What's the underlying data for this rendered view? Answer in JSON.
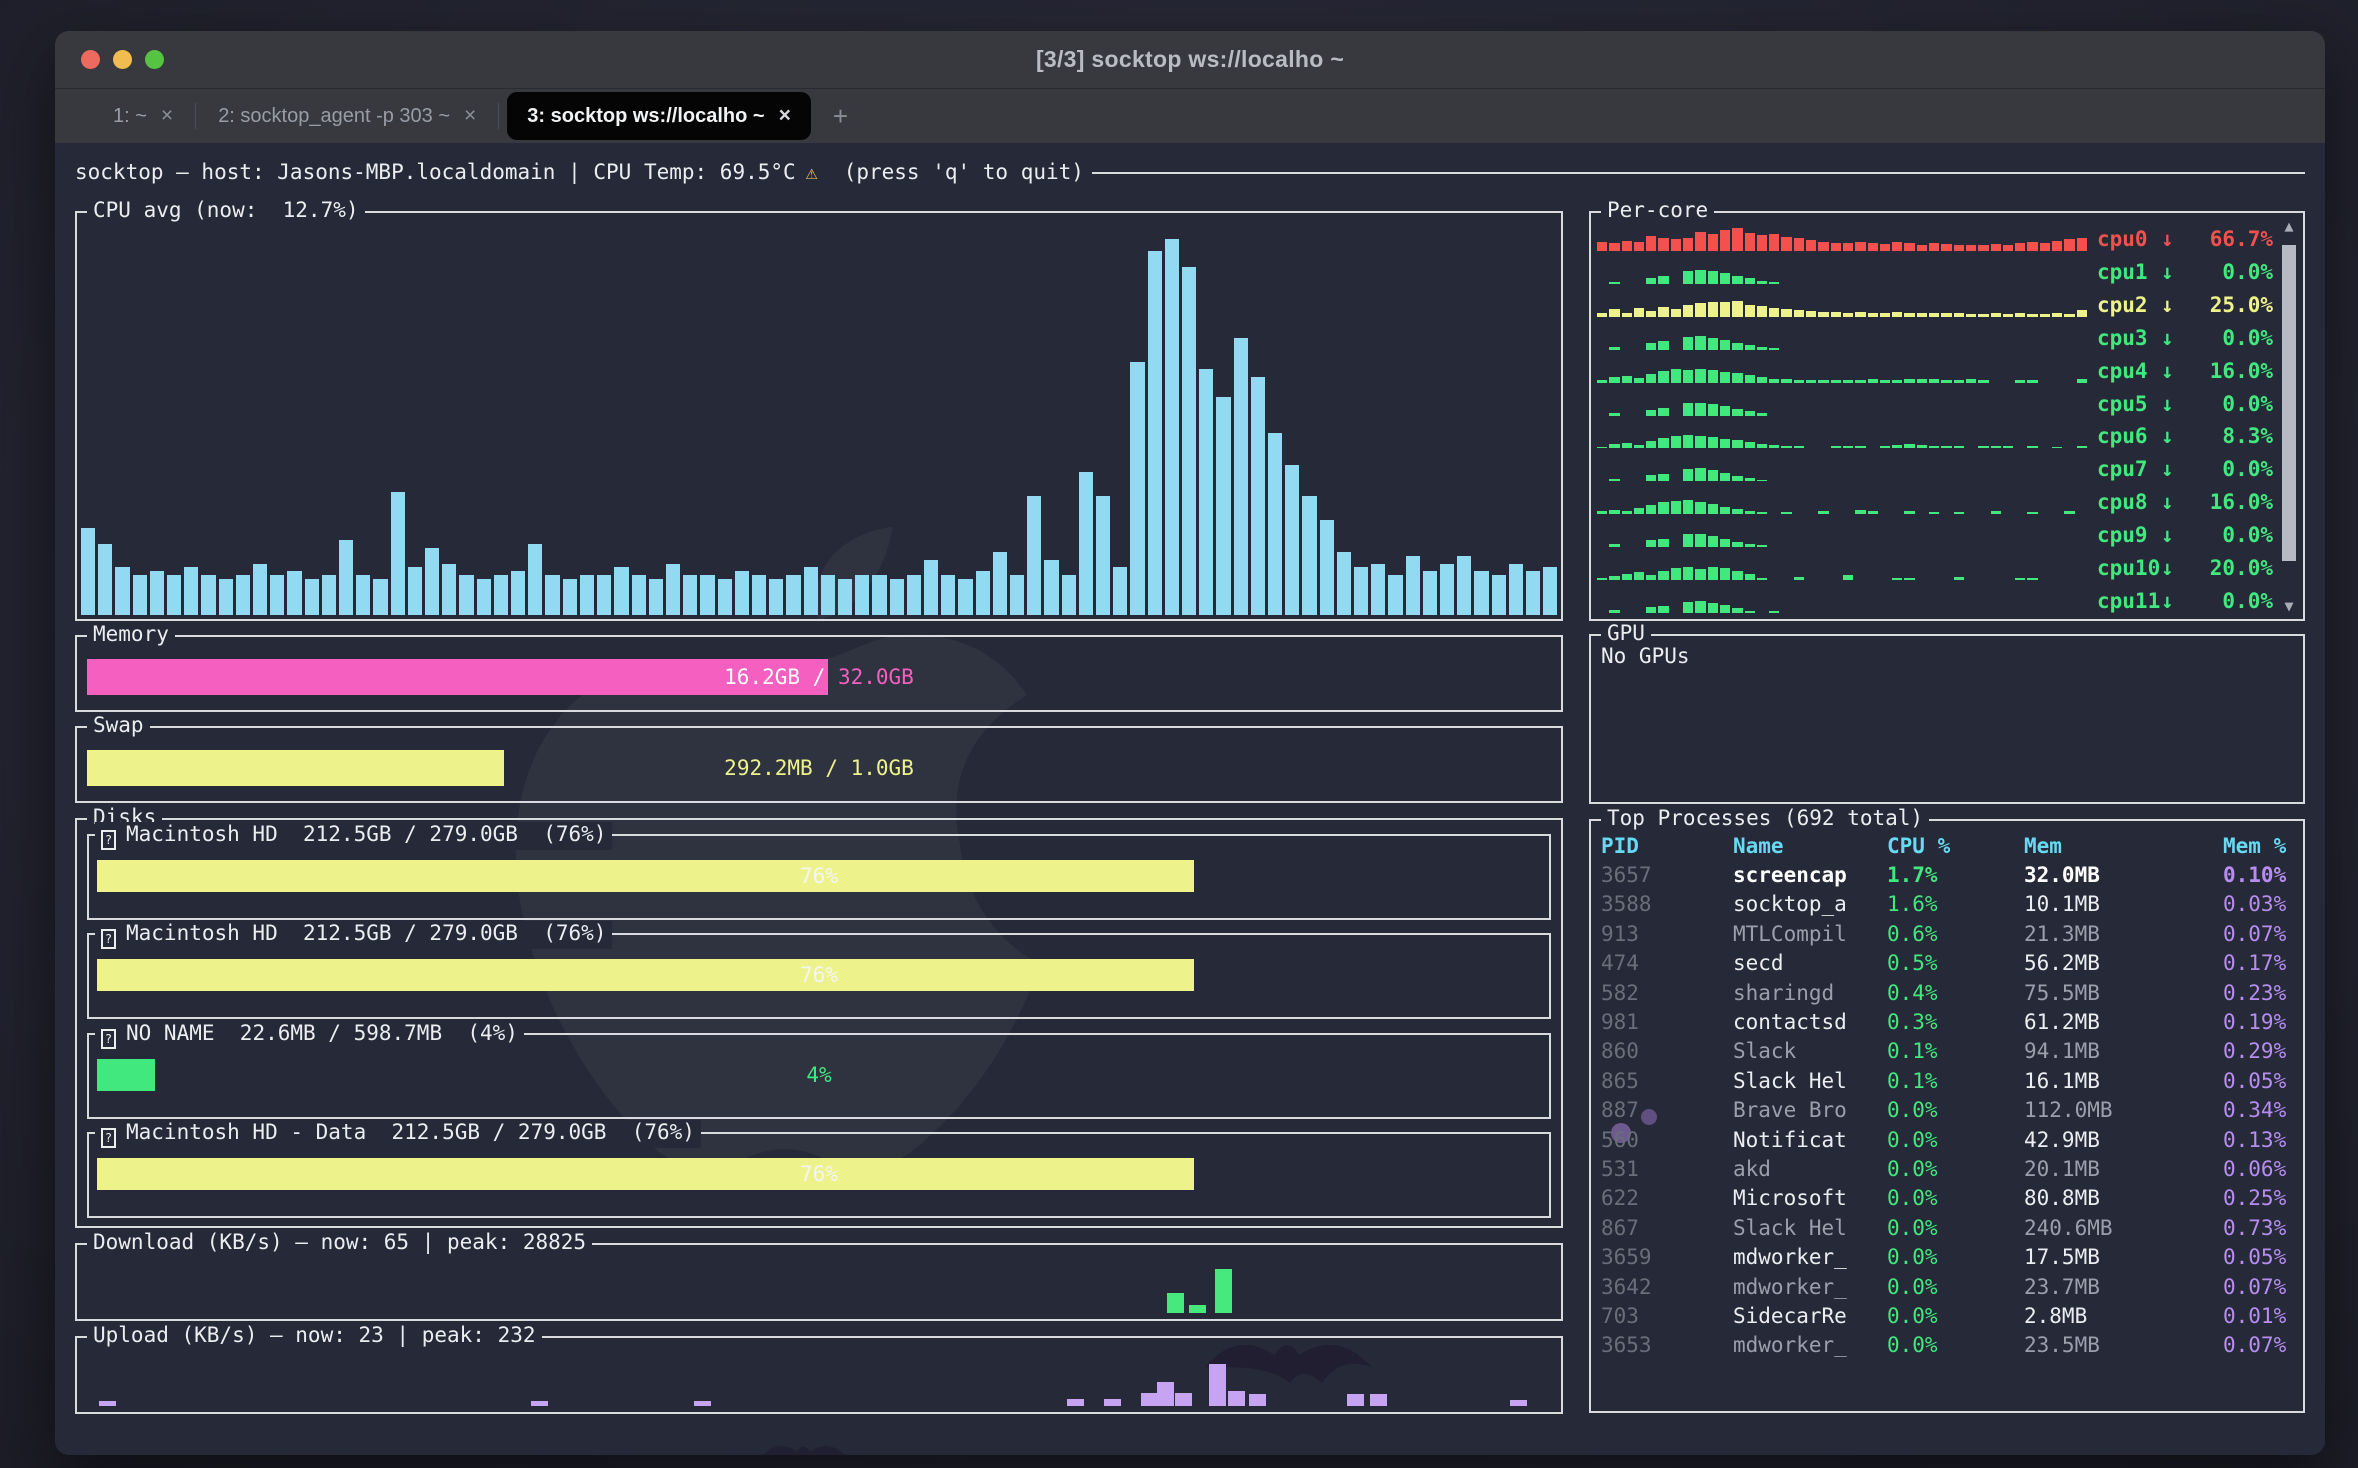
{
  "window": {
    "title": "[3/3] socktop ws://localho ~"
  },
  "tabs": [
    {
      "label": "1: ~",
      "close": "×",
      "active": false
    },
    {
      "label": "2: socktop_agent -p 303 ~",
      "close": "×",
      "active": false
    },
    {
      "label": "3: socktop ws://localho ~",
      "close": "×",
      "active": true
    }
  ],
  "tabbar": {
    "new_tab": "+"
  },
  "header": {
    "text": "socktop — host: Jasons-MBP.localdomain | CPU Temp: 69.5°C",
    "warning": "⚠",
    "suffix": "(press 'q' to quit)"
  },
  "colors": {
    "cpu_bars": "#92d9f2",
    "memory": "#f45fc0",
    "yellow": "#eef28a",
    "green": "#41e87d",
    "red": "#f2514d",
    "purple_text": "#b88df2",
    "upload_bars": "#c7a4f2",
    "header_cyan": "#67d9f2"
  },
  "chart_data": {
    "type": "bar",
    "title": "CPU avg (now:  12.7%)",
    "ylim": [
      0,
      100
    ],
    "values": [
      22,
      18,
      12,
      10,
      11,
      10,
      12,
      10,
      9,
      10,
      13,
      10,
      11,
      9,
      10,
      19,
      10,
      9,
      31,
      12,
      17,
      13,
      10,
      9,
      10,
      11,
      18,
      10,
      9,
      10,
      10,
      12,
      10,
      9,
      13,
      10,
      10,
      9,
      11,
      10,
      9,
      10,
      12,
      10,
      9,
      10,
      10,
      9,
      10,
      14,
      10,
      9,
      11,
      16,
      10,
      30,
      14,
      10,
      36,
      30,
      12,
      64,
      92,
      95,
      88,
      62,
      55,
      70,
      60,
      46,
      38,
      30,
      24,
      16,
      12,
      13,
      10,
      15,
      11,
      13,
      15,
      11,
      10,
      13,
      11,
      12
    ]
  },
  "cpu_panel": {
    "title": "CPU avg (now:  12.7%)",
    "bar_color": "#92d9f2"
  },
  "percore_panel": {
    "title": "Per-core",
    "scroll_up": "▲",
    "scroll_down": "▼",
    "cores": [
      {
        "name": "cpu0",
        "arrow": "↓",
        "value": "66.7%",
        "color": "#f2514d",
        "spark": [
          30,
          28,
          34,
          30,
          52,
          44,
          40,
          46,
          66,
          58,
          72,
          78,
          62,
          56,
          60,
          48,
          44,
          38,
          32,
          28,
          26,
          30,
          26,
          24,
          30,
          26,
          22,
          28,
          24,
          22,
          20,
          22,
          24,
          20,
          26,
          30,
          28,
          34,
          40,
          46
        ]
      },
      {
        "name": "cpu1",
        "arrow": "↓",
        "value": "0.0%",
        "color": "#41e87d",
        "spark": [
          0,
          8,
          0,
          0,
          22,
          28,
          0,
          46,
          48,
          44,
          38,
          26,
          20,
          10,
          8,
          0,
          0,
          0,
          0,
          0,
          0,
          0,
          0,
          0,
          0,
          0,
          0,
          0,
          0,
          0,
          0,
          0,
          0,
          0,
          0,
          0,
          0,
          0,
          0,
          0
        ]
      },
      {
        "name": "cpu2",
        "arrow": "↓",
        "value": "25.0%",
        "color": "#eef28a",
        "spark": [
          12,
          26,
          14,
          30,
          20,
          34,
          26,
          40,
          46,
          52,
          50,
          54,
          42,
          36,
          30,
          28,
          24,
          20,
          18,
          16,
          14,
          16,
          12,
          14,
          18,
          14,
          12,
          12,
          14,
          12,
          10,
          10,
          12,
          10,
          12,
          10,
          10,
          14,
          10,
          22
        ]
      },
      {
        "name": "cpu3",
        "arrow": "↓",
        "value": "0.0%",
        "color": "#41e87d",
        "spark": [
          0,
          10,
          0,
          0,
          24,
          30,
          0,
          44,
          46,
          42,
          34,
          24,
          16,
          8,
          6,
          0,
          0,
          0,
          0,
          0,
          0,
          0,
          0,
          0,
          0,
          0,
          0,
          0,
          0,
          0,
          0,
          0,
          0,
          0,
          0,
          0,
          0,
          0,
          0,
          0
        ]
      },
      {
        "name": "cpu4",
        "arrow": "↓",
        "value": "16.0%",
        "color": "#41e87d",
        "spark": [
          8,
          18,
          24,
          16,
          30,
          40,
          46,
          44,
          48,
          44,
          38,
          32,
          26,
          20,
          14,
          12,
          10,
          10,
          8,
          10,
          10,
          10,
          12,
          10,
          10,
          12,
          14,
          12,
          10,
          10,
          14,
          10,
          0,
          0,
          8,
          10,
          0,
          0,
          0,
          12
        ]
      },
      {
        "name": "cpu5",
        "arrow": "↓",
        "value": "0.0%",
        "color": "#41e87d",
        "spark": [
          0,
          8,
          0,
          0,
          20,
          26,
          0,
          42,
          44,
          40,
          32,
          22,
          14,
          8,
          0,
          0,
          0,
          0,
          0,
          0,
          0,
          0,
          0,
          0,
          0,
          0,
          0,
          0,
          0,
          0,
          0,
          0,
          0,
          0,
          0,
          0,
          0,
          0,
          0,
          0
        ]
      },
      {
        "name": "cpu6",
        "arrow": "↓",
        "value": "8.3%",
        "color": "#41e87d",
        "spark": [
          6,
          14,
          18,
          12,
          26,
          36,
          42,
          46,
          44,
          40,
          34,
          28,
          22,
          16,
          12,
          10,
          8,
          0,
          0,
          8,
          10,
          8,
          0,
          10,
          12,
          14,
          12,
          10,
          8,
          10,
          0,
          8,
          10,
          8,
          0,
          8,
          0,
          6,
          0,
          8
        ]
      },
      {
        "name": "cpu7",
        "arrow": "↓",
        "value": "0.0%",
        "color": "#41e87d",
        "spark": [
          0,
          8,
          0,
          0,
          22,
          26,
          0,
          44,
          46,
          40,
          30,
          20,
          12,
          6,
          0,
          0,
          0,
          0,
          0,
          0,
          0,
          0,
          0,
          0,
          0,
          0,
          0,
          0,
          0,
          0,
          0,
          0,
          0,
          0,
          0,
          0,
          0,
          0,
          0,
          0
        ]
      },
      {
        "name": "cpu8",
        "arrow": "↓",
        "value": "16.0%",
        "color": "#41e87d",
        "spark": [
          10,
          16,
          12,
          22,
          32,
          42,
          46,
          48,
          42,
          36,
          26,
          18,
          10,
          8,
          0,
          8,
          0,
          0,
          10,
          0,
          0,
          14,
          10,
          0,
          0,
          12,
          0,
          8,
          0,
          8,
          0,
          0,
          10,
          0,
          0,
          8,
          0,
          0,
          10,
          0
        ]
      },
      {
        "name": "cpu9",
        "arrow": "↓",
        "value": "0.0%",
        "color": "#41e87d",
        "spark": [
          0,
          10,
          0,
          0,
          24,
          28,
          0,
          46,
          44,
          38,
          28,
          18,
          10,
          6,
          0,
          0,
          0,
          0,
          0,
          0,
          0,
          0,
          0,
          0,
          0,
          0,
          0,
          0,
          0,
          0,
          0,
          0,
          0,
          0,
          0,
          0,
          0,
          0,
          0,
          0
        ]
      },
      {
        "name": "cpu10",
        "arrow": "↓",
        "value": "20.0%",
        "color": "#41e87d",
        "spark": [
          8,
          14,
          22,
          28,
          18,
          32,
          40,
          44,
          38,
          46,
          42,
          32,
          22,
          8,
          0,
          0,
          10,
          0,
          0,
          0,
          18,
          0,
          0,
          0,
          8,
          8,
          0,
          0,
          0,
          10,
          0,
          0,
          0,
          0,
          6,
          8,
          0,
          0,
          0,
          0
        ]
      },
      {
        "name": "cpu11",
        "arrow": "↓",
        "value": "0.0%",
        "color": "#41e87d",
        "spark": [
          0,
          10,
          0,
          0,
          20,
          24,
          0,
          38,
          42,
          36,
          26,
          16,
          8,
          0,
          6,
          0,
          0,
          0,
          0,
          0,
          0,
          0,
          0,
          0,
          0,
          0,
          0,
          0,
          0,
          0,
          0,
          0,
          0,
          0,
          0,
          0,
          0,
          0,
          0,
          0
        ]
      }
    ]
  },
  "memory_panel": {
    "title": "Memory",
    "used_label": "16.2GB /",
    "total_label": " 32.0GB",
    "percent": 50.6,
    "fill_color": "#f45fc0",
    "used_text_color": "#ffffff",
    "total_text_color": "#f45fc0"
  },
  "swap_panel": {
    "title": "Swap",
    "label": "292.2MB / 1.0GB",
    "percent": 28.5,
    "fill_color": "#eef28a",
    "text_color": "#eef28a"
  },
  "gpu_panel": {
    "title": "GPU",
    "text": "No GPUs"
  },
  "disks_panel": {
    "title": "Disks",
    "disks": [
      {
        "name": "Macintosh HD",
        "usage": "212.5GB / 279.0GB",
        "pct": "(76%)",
        "fill_percent": 76,
        "fill_color": "#eef28a",
        "label": "76%",
        "label_color": "#f4f5f7"
      },
      {
        "name": "Macintosh HD",
        "usage": "212.5GB / 279.0GB",
        "pct": "(76%)",
        "fill_percent": 76,
        "fill_color": "#eef28a",
        "label": "76%",
        "label_color": "#f4f5f7"
      },
      {
        "name": "NO NAME",
        "usage": "22.6MB / 598.7MB",
        "pct": "(4%)",
        "fill_percent": 4,
        "fill_color": "#41e87d",
        "label": "4%",
        "label_color": "#41e87d"
      },
      {
        "name": "Macintosh HD - Data",
        "usage": "212.5GB / 279.0GB",
        "pct": "(76%)",
        "fill_percent": 76,
        "fill_color": "#eef28a",
        "label": "76%",
        "label_color": "#f4f5f7"
      }
    ]
  },
  "download_panel": {
    "title": "Download (KB/s) — now: 65 | peak: 28825",
    "bar_color": "#45e97e",
    "bars": [
      {
        "x": 73.6,
        "h": 30
      },
      {
        "x": 75.1,
        "h": 12
      },
      {
        "x": 76.8,
        "h": 66
      }
    ]
  },
  "upload_panel": {
    "title": "Upload (KB/s) — now: 23 | peak: 232",
    "bar_color": "#c7a4f2",
    "bars": [
      {
        "x": 1.2,
        "h": 8
      },
      {
        "x": 30.5,
        "h": 8
      },
      {
        "x": 41.5,
        "h": 8
      },
      {
        "x": 66.8,
        "h": 10
      },
      {
        "x": 69.3,
        "h": 10
      },
      {
        "x": 71.8,
        "h": 20
      },
      {
        "x": 72.9,
        "h": 36
      },
      {
        "x": 74.1,
        "h": 20
      },
      {
        "x": 76.4,
        "h": 64
      },
      {
        "x": 77.7,
        "h": 22
      },
      {
        "x": 79.1,
        "h": 18
      },
      {
        "x": 85.8,
        "h": 18
      },
      {
        "x": 87.3,
        "h": 18
      },
      {
        "x": 96.8,
        "h": 9
      }
    ]
  },
  "processes_panel": {
    "title": "Top Processes (692 total)",
    "columns": [
      "PID",
      "Name",
      "CPU %",
      "Mem",
      "Mem %"
    ],
    "rows": [
      {
        "pid": "3657",
        "name": "screencap",
        "cpu": "1.7%",
        "mem": "32.0MB",
        "memp": "0.10%",
        "emph": true,
        "dim": false
      },
      {
        "pid": "3588",
        "name": "socktop_a",
        "cpu": "1.6%",
        "mem": "10.1MB",
        "memp": "0.03%",
        "emph": false,
        "dim": false
      },
      {
        "pid": "913",
        "name": "MTLCompil",
        "cpu": "0.6%",
        "mem": "21.3MB",
        "memp": "0.07%",
        "emph": false,
        "dim": true
      },
      {
        "pid": "474",
        "name": "secd",
        "cpu": "0.5%",
        "mem": "56.2MB",
        "memp": "0.17%",
        "emph": false,
        "dim": false
      },
      {
        "pid": "582",
        "name": "sharingd",
        "cpu": "0.4%",
        "mem": "75.5MB",
        "memp": "0.23%",
        "emph": false,
        "dim": true
      },
      {
        "pid": "981",
        "name": "contactsd",
        "cpu": "0.3%",
        "mem": "61.2MB",
        "memp": "0.19%",
        "emph": false,
        "dim": false
      },
      {
        "pid": "860",
        "name": "Slack",
        "cpu": "0.1%",
        "mem": "94.1MB",
        "memp": "0.29%",
        "emph": false,
        "dim": true
      },
      {
        "pid": "865",
        "name": "Slack Hel",
        "cpu": "0.1%",
        "mem": "16.1MB",
        "memp": "0.05%",
        "emph": false,
        "dim": false
      },
      {
        "pid": "887",
        "name": "Brave Bro",
        "cpu": "0.0%",
        "mem": "112.0MB",
        "memp": "0.34%",
        "emph": false,
        "dim": true
      },
      {
        "pid": "560",
        "name": "Notificat",
        "cpu": "0.0%",
        "mem": "42.9MB",
        "memp": "0.13%",
        "emph": false,
        "dim": false
      },
      {
        "pid": "531",
        "name": "akd",
        "cpu": "0.0%",
        "mem": "20.1MB",
        "memp": "0.06%",
        "emph": false,
        "dim": true
      },
      {
        "pid": "622",
        "name": "Microsoft",
        "cpu": "0.0%",
        "mem": "80.8MB",
        "memp": "0.25%",
        "emph": false,
        "dim": false
      },
      {
        "pid": "867",
        "name": "Slack Hel",
        "cpu": "0.0%",
        "mem": "240.6MB",
        "memp": "0.73%",
        "emph": false,
        "dim": true
      },
      {
        "pid": "3659",
        "name": "mdworker_",
        "cpu": "0.0%",
        "mem": "17.5MB",
        "memp": "0.05%",
        "emph": false,
        "dim": false
      },
      {
        "pid": "3642",
        "name": "mdworker_",
        "cpu": "0.0%",
        "mem": "23.7MB",
        "memp": "0.07%",
        "emph": false,
        "dim": true
      },
      {
        "pid": "703",
        "name": "SidecarRe",
        "cpu": "0.0%",
        "mem": "2.8MB",
        "memp": "0.01%",
        "emph": false,
        "dim": false
      },
      {
        "pid": "3653",
        "name": "mdworker_",
        "cpu": "0.0%",
        "mem": "23.5MB",
        "memp": "0.07%",
        "emph": false,
        "dim": true
      }
    ]
  }
}
